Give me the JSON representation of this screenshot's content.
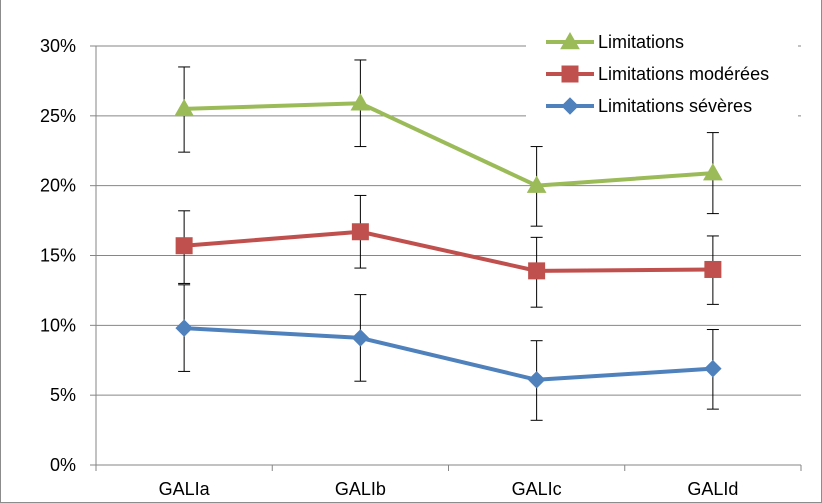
{
  "chart_data": {
    "type": "line",
    "title": "",
    "xlabel": "",
    "ylabel": "",
    "categories": [
      "GALIa",
      "GALIb",
      "GALIc",
      "GALId"
    ],
    "y_ticks": [
      "0%",
      "5%",
      "10%",
      "15%",
      "20%",
      "25%",
      "30%"
    ],
    "ylim": [
      0,
      30
    ],
    "y_unit": "%",
    "grid": "horizontal",
    "legend_position": "top-right",
    "series": [
      {
        "name": "Limitations",
        "color": "#9bbb59",
        "marker": "triangle",
        "values": [
          25.5,
          25.9,
          20.0,
          20.9
        ],
        "err_low": [
          22.4,
          22.8,
          17.1,
          18.0
        ],
        "err_high": [
          28.5,
          29.0,
          22.8,
          23.8
        ]
      },
      {
        "name": "Limitations modérées",
        "color": "#c0504d",
        "marker": "square",
        "values": [
          15.7,
          16.7,
          13.9,
          14.0
        ],
        "err_low": [
          13.0,
          14.1,
          11.3,
          11.5
        ],
        "err_high": [
          18.2,
          19.3,
          16.3,
          16.4
        ]
      },
      {
        "name": "Limitations sévères",
        "color": "#4f81bd",
        "marker": "diamond",
        "values": [
          9.8,
          9.1,
          6.1,
          6.9
        ],
        "err_low": [
          6.7,
          6.0,
          3.2,
          4.0
        ],
        "err_high": [
          12.9,
          12.2,
          8.9,
          9.7
        ]
      }
    ]
  }
}
